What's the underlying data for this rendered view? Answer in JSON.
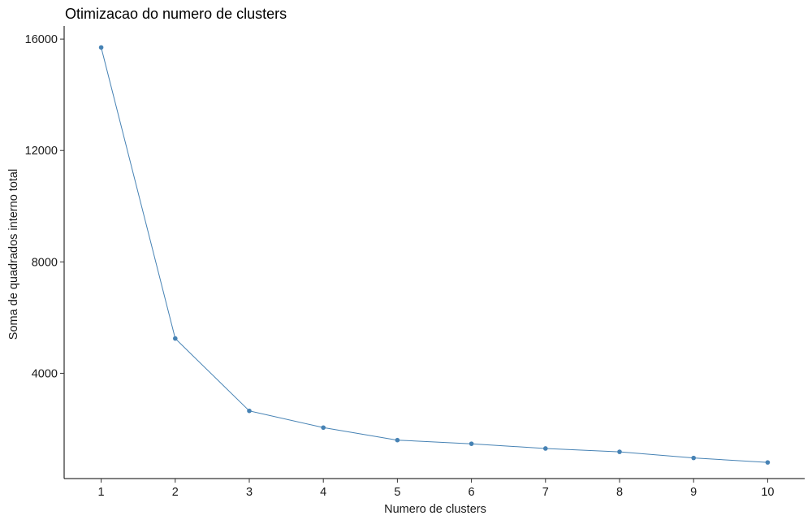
{
  "chart_data": {
    "type": "line",
    "title": "Otimizacao do numero de clusters",
    "xlabel": "Numero de clusters",
    "ylabel": "Soma de quadrados interno total",
    "x": [
      1,
      2,
      3,
      4,
      5,
      6,
      7,
      8,
      9,
      10
    ],
    "series": [
      {
        "name": "Soma de quadrados interno total",
        "values": [
          15700,
          5250,
          2650,
          2050,
          1600,
          1470,
          1300,
          1180,
          960,
          800
        ]
      }
    ],
    "xticks": [
      "1",
      "2",
      "3",
      "4",
      "5",
      "6",
      "7",
      "8",
      "9",
      "10"
    ],
    "yticks": [
      4000,
      8000,
      12000,
      16000
    ],
    "ylim": [
      220,
      16470
    ],
    "xlim": [
      0.5,
      10.5
    ],
    "grid": false,
    "color": "#4682B4"
  }
}
